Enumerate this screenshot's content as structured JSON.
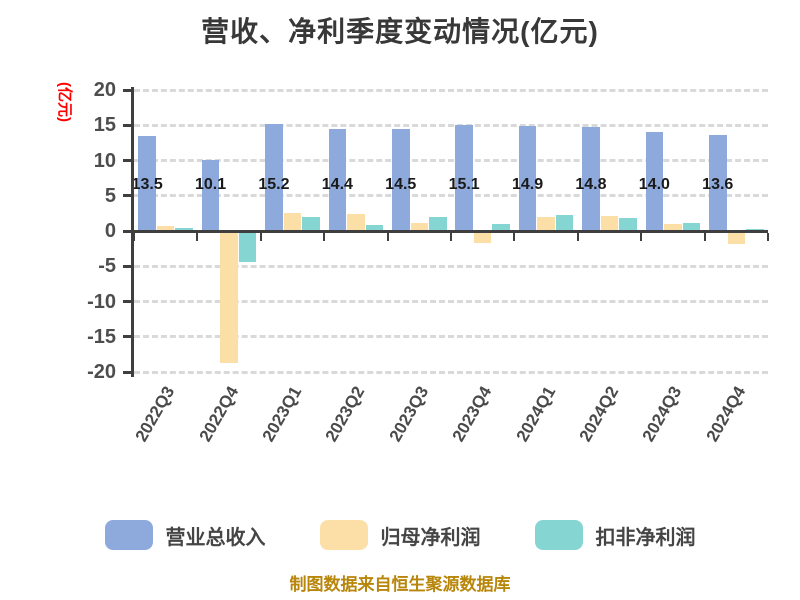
{
  "title": "营收、净利季度变动情况(亿元)",
  "ylabel": "(亿元)",
  "footer": "制图数据来自恒生聚源数据库",
  "colors": {
    "grid": "#d9d9d9",
    "axis": "#3f3f3f",
    "tick_label": "#4d4d4d",
    "bar_label": "#1a1a1a",
    "title": "#383838",
    "ylabel_red": "#ff0000",
    "footer_gold": "#b8860b"
  },
  "chart_data": {
    "type": "bar",
    "title": "营收、净利季度变动情况(亿元)",
    "ylabel": "(亿元)",
    "xlabel": "",
    "categories": [
      "2022Q3",
      "2022Q4",
      "2023Q1",
      "2023Q2",
      "2023Q3",
      "2023Q4",
      "2024Q1",
      "2024Q2",
      "2024Q3",
      "2024Q4"
    ],
    "series": [
      {
        "key": "revenue",
        "name": "营业总收入",
        "color": "#8EA9DB",
        "values": [
          13.5,
          10.1,
          15.2,
          14.4,
          14.5,
          15.1,
          14.9,
          14.8,
          14.0,
          13.6
        ],
        "labels": [
          "13.5",
          "10.1",
          "15.2",
          "14.4",
          "14.5",
          "15.1",
          "14.9",
          "14.8",
          "14.0",
          "13.6"
        ]
      },
      {
        "key": "net-profit",
        "name": "归母净利润",
        "color": "#FBDFA6",
        "values": [
          0.7,
          -18.5,
          2.6,
          2.4,
          1.1,
          -1.4,
          2.0,
          2.1,
          1.0,
          -1.5
        ],
        "labels": []
      },
      {
        "key": "non-gaap-profit",
        "name": "扣非净利润",
        "color": "#85D5D2",
        "values": [
          0.4,
          -4.1,
          2.0,
          0.9,
          2.0,
          1.0,
          2.3,
          1.8,
          1.1,
          0.3
        ],
        "labels": []
      }
    ],
    "yticks": [
      20,
      15,
      10,
      5,
      0,
      -5,
      -10,
      -15,
      -20
    ],
    "ylim": [
      -20,
      20
    ],
    "grid": "horizontal-dashed",
    "legend_position": "bottom"
  }
}
